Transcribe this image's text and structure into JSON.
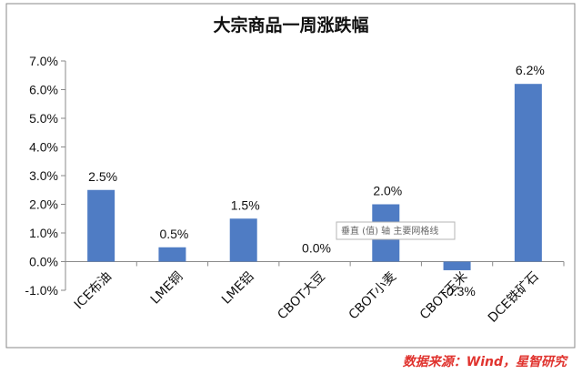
{
  "chart_data": {
    "type": "bar",
    "title": "大宗商品一周涨跌幅",
    "categories": [
      "ICE布油",
      "LME铜",
      "LME铝",
      "CBOT大豆",
      "CBOT小麦",
      "CBOT玉米",
      "DCE铁矿石"
    ],
    "values": [
      2.5,
      0.5,
      1.5,
      0.0,
      2.0,
      -0.3,
      6.2
    ],
    "data_labels": [
      "2.5%",
      "0.5%",
      "1.5%",
      "0.0%",
      "2.0%",
      "-0.3%",
      "6.2%"
    ],
    "ylim": [
      -1.0,
      7.0
    ],
    "yticks": [
      7.0,
      6.0,
      5.0,
      4.0,
      3.0,
      2.0,
      1.0,
      0.0,
      -1.0
    ],
    "ytick_labels": [
      "7.0%",
      "6.0%",
      "5.0%",
      "4.0%",
      "3.0%",
      "2.0%",
      "1.0%",
      "0.0%",
      "-1.0%"
    ],
    "xlabel": "",
    "ylabel": "",
    "grid": false,
    "legend": "none",
    "bar_color": "#4f7cc4"
  },
  "tooltip": {
    "text": "垂直 (值) 轴 主要网格线"
  },
  "source": {
    "text": "数据来源：Wind，星智研究",
    "color": "#e0332e"
  }
}
